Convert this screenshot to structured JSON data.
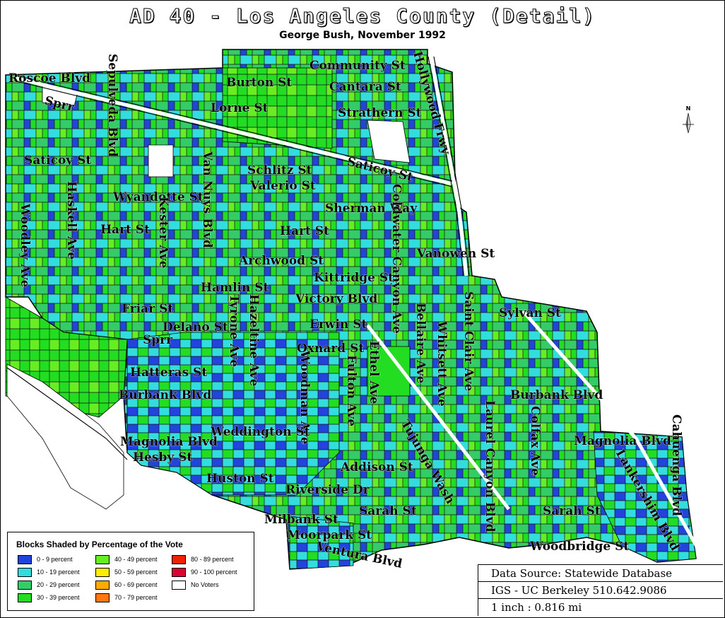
{
  "title": "AD 40 - Los Angeles County (Detail)",
  "subtitle": "George Bush, November 1992",
  "north_label": "N",
  "streets": [
    {
      "id": "roscoe-blvd",
      "label": "Roscoe Blvd"
    },
    {
      "id": "sprr-1",
      "label": "Sprr"
    },
    {
      "id": "sepulveda-blvd",
      "label": "Sepulveda Blvd"
    },
    {
      "id": "burton-st",
      "label": "Burton St"
    },
    {
      "id": "community-st",
      "label": "Community St"
    },
    {
      "id": "cantara-st",
      "label": "Cantara St"
    },
    {
      "id": "hollywood-frwy",
      "label": "Hollywood Frwy"
    },
    {
      "id": "lorne-st",
      "label": "Lorne St"
    },
    {
      "id": "strathern-st",
      "label": "Strathern St"
    },
    {
      "id": "saticoy-st-west",
      "label": "Saticoy St"
    },
    {
      "id": "saticoy-st-east",
      "label": "Saticoy St"
    },
    {
      "id": "schlitz-st",
      "label": "Schlitz St"
    },
    {
      "id": "valerio-st",
      "label": "Valerio St"
    },
    {
      "id": "wyandotte-st",
      "label": "Wyandotte St"
    },
    {
      "id": "van-nuys-blvd",
      "label": "Van Nuys Blvd"
    },
    {
      "id": "haskell-ave",
      "label": "Haskell Ave"
    },
    {
      "id": "sherman-way",
      "label": "Sherman Way"
    },
    {
      "id": "hart-st-west",
      "label": "Hart St"
    },
    {
      "id": "kester-ave",
      "label": "Kester Ave"
    },
    {
      "id": "hart-st-east",
      "label": "Hart St"
    },
    {
      "id": "coldwater-canyon-ave",
      "label": "Coldwater Canyon Ave"
    },
    {
      "id": "woodley-ave",
      "label": "Woodley Ave"
    },
    {
      "id": "vanowen-st",
      "label": "Vanowen St"
    },
    {
      "id": "archwood-st",
      "label": "Archwood St"
    },
    {
      "id": "kittridge-st",
      "label": "Kittridge St"
    },
    {
      "id": "hamlin-st",
      "label": "Hamlin St"
    },
    {
      "id": "victory-blvd",
      "label": "Victory Blvd"
    },
    {
      "id": "friar-st",
      "label": "Friar St"
    },
    {
      "id": "sylvan-st",
      "label": "Sylvan St"
    },
    {
      "id": "delano-st",
      "label": "Delano St"
    },
    {
      "id": "tyrone-ave",
      "label": "Tyrone Ave"
    },
    {
      "id": "hazeltine-ave",
      "label": "Hazeltine Ave"
    },
    {
      "id": "erwin-st",
      "label": "Erwin St"
    },
    {
      "id": "bellaire-ave",
      "label": "Bellaire Ave"
    },
    {
      "id": "whitsett-ave",
      "label": "Whitsett Ave"
    },
    {
      "id": "saint-clair-ave",
      "label": "Saint Clair Ave"
    },
    {
      "id": "sprr-2",
      "label": "Sprr"
    },
    {
      "id": "oxnard-st",
      "label": "Oxnard St"
    },
    {
      "id": "hatteras-st",
      "label": "Hatteras St"
    },
    {
      "id": "woodman-ave",
      "label": "Woodman Ave"
    },
    {
      "id": "fulton-ave",
      "label": "Fulton Ave"
    },
    {
      "id": "ethel-ave",
      "label": "Ethel Ave"
    },
    {
      "id": "burbank-blvd-west",
      "label": "Burbank Blvd"
    },
    {
      "id": "burbank-blvd-east",
      "label": "Burbank Blvd"
    },
    {
      "id": "weddington-st",
      "label": "Weddington St"
    },
    {
      "id": "tujunga-wash",
      "label": "Tujunga Wash"
    },
    {
      "id": "laurel-canyon-blvd",
      "label": "Laurel Canyon Blvd"
    },
    {
      "id": "colfax-ave",
      "label": "Colfax Ave"
    },
    {
      "id": "magnolia-blvd-west",
      "label": "Magnolia Blvd"
    },
    {
      "id": "magnolia-blvd-east",
      "label": "Magnolia Blvd"
    },
    {
      "id": "cahuenga-blvd",
      "label": "Cahuenga Blvd"
    },
    {
      "id": "hesby-st",
      "label": "Hesby St"
    },
    {
      "id": "addison-st",
      "label": "Addison St"
    },
    {
      "id": "lankershim-blvd",
      "label": "Lankershim Blvd"
    },
    {
      "id": "huston-st",
      "label": "Huston St"
    },
    {
      "id": "riverside-dr",
      "label": "Riverside Dr"
    },
    {
      "id": "sarah-st-west",
      "label": "Sarah St"
    },
    {
      "id": "sarah-st-east",
      "label": "Sarah St"
    },
    {
      "id": "milbank-st",
      "label": "Milbank St"
    },
    {
      "id": "moorpark-st",
      "label": "Moorpark St"
    },
    {
      "id": "woodbridge-st",
      "label": "Woodbridge St"
    },
    {
      "id": "ventura-blvd",
      "label": "Ventura Blvd"
    }
  ],
  "legend": {
    "title": "Blocks Shaded by Percentage of the Vote",
    "items": [
      {
        "label": "0 - 9 percent",
        "color": "#2244dd"
      },
      {
        "label": "10 - 19 percent",
        "color": "#33dddd"
      },
      {
        "label": "20 - 29 percent",
        "color": "#33cc66"
      },
      {
        "label": "30 - 39 percent",
        "color": "#22dd22"
      },
      {
        "label": "40 - 49 percent",
        "color": "#66ee22"
      },
      {
        "label": "50 - 59 percent",
        "color": "#ffee00"
      },
      {
        "label": "60 - 69 percent",
        "color": "#ffaa00"
      },
      {
        "label": "70 - 79 percent",
        "color": "#ff7711"
      },
      {
        "label": "80 - 89 percent",
        "color": "#ee2200"
      },
      {
        "label": "90 - 100 percent",
        "color": "#dd0033"
      },
      {
        "label": "No Voters",
        "color": "#ffffff"
      }
    ]
  },
  "source_box": {
    "line1": "Data Source: Statewide Database",
    "line2": "IGS - UC Berkeley 510.642.9086",
    "line3": "1 inch : 0.816 mi"
  }
}
